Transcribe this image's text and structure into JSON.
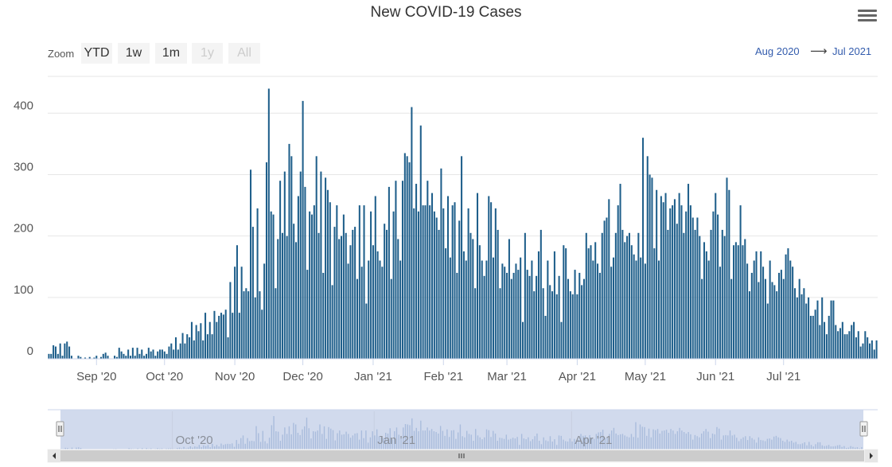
{
  "chart_data": {
    "type": "bar",
    "title": "New COVID-19 Cases",
    "xlabel": "",
    "ylabel": "",
    "ylim": [
      0,
      460
    ],
    "yticks": [
      0,
      100,
      200,
      300,
      400
    ],
    "xticks": [
      "Sep '20",
      "Oct '20",
      "Nov '20",
      "Dec '20",
      "Jan '21",
      "Feb '21",
      "Mar '21",
      "Apr '21",
      "May '21",
      "Jun '21",
      "Jul '21"
    ],
    "xtick_dates": [
      "2020-09-01",
      "2020-10-01",
      "2020-11-01",
      "2020-12-01",
      "2021-01-01",
      "2021-02-01",
      "2021-03-01",
      "2021-04-01",
      "2021-05-01",
      "2021-06-01",
      "2021-07-01"
    ],
    "start_date": "2020-08-11",
    "grid": true,
    "bar_color": "#1f5f8b",
    "navigator_labels": [
      "Oct '20",
      "Jan '21",
      "Apr '21"
    ],
    "navigator_label_dates": [
      "2020-10-01",
      "2021-01-01",
      "2021-04-01"
    ],
    "series": [
      {
        "values": [
          8,
          8,
          22,
          20,
          8,
          25,
          5,
          25,
          28,
          20,
          5,
          0,
          0,
          5,
          3,
          0,
          2,
          0,
          3,
          0,
          2,
          5,
          0,
          3,
          8,
          10,
          5,
          0,
          0,
          5,
          3,
          18,
          12,
          8,
          5,
          15,
          5,
          18,
          5,
          18,
          8,
          15,
          5,
          8,
          18,
          12,
          15,
          5,
          12,
          15,
          15,
          12,
          8,
          20,
          25,
          15,
          35,
          15,
          25,
          42,
          25,
          40,
          35,
          60,
          30,
          55,
          45,
          58,
          30,
          75,
          40,
          60,
          40,
          78,
          60,
          70,
          75,
          72,
          80,
          35,
          125,
          75,
          150,
          185,
          75,
          150,
          110,
          115,
          110,
          308,
          215,
          100,
          245,
          110,
          80,
          155,
          320,
          440,
          240,
          235,
          115,
          195,
          290,
          205,
          305,
          200,
          350,
          330,
          220,
          190,
          265,
          305,
          420,
          280,
          145,
          240,
          235,
          250,
          330,
          205,
          305,
          140,
          295,
          275,
          255,
          120,
          215,
          250,
          195,
          200,
          235,
          205,
          155,
          185,
          210,
          215,
          130,
          250,
          150,
          250,
          90,
          160,
          240,
          185,
          265,
          175,
          160,
          150,
          220,
          210,
          280,
          130,
          240,
          290,
          195,
          160,
          290,
          335,
          330,
          320,
          410,
          245,
          285,
          240,
          380,
          250,
          250,
          290,
          250,
          270,
          240,
          230,
          210,
          310,
          245,
          180,
          265,
          165,
          250,
          255,
          140,
          225,
          330,
          175,
          160,
          245,
          205,
          195,
          115,
          270,
          185,
          160,
          135,
          160,
          265,
          255,
          165,
          245,
          210,
          115,
          155,
          150,
          140,
          195,
          130,
          140,
          155,
          145,
          165,
          60,
          205,
          145,
          135,
          160,
          110,
          135,
          175,
          210,
          115,
          70,
          160,
          120,
          110,
          175,
          105,
          135,
          60,
          185,
          180,
          130,
          110,
          105,
          145,
          105,
          140,
          120,
          130,
          205,
          180,
          185,
          160,
          190,
          155,
          140,
          205,
          225,
          230,
          260,
          150,
          165,
          205,
          250,
          285,
          210,
          190,
          200,
          205,
          185,
          170,
          160,
          205,
          165,
          360,
          155,
          330,
          300,
          295,
          180,
          275,
          160,
          265,
          255,
          270,
          210,
          245,
          250,
          260,
          220,
          270,
          250,
          205,
          240,
          285,
          250,
          230,
          210,
          230,
          200,
          130,
          190,
          175,
          160,
          210,
          240,
          270,
          235,
          150,
          210,
          200,
          295,
          275,
          130,
          185,
          190,
          185,
          250,
          185,
          195,
          155,
          110,
          140,
          160,
          175,
          125,
          175,
          150,
          130,
          90,
          160,
          125,
          120,
          110,
          140,
          145,
          130,
          170,
          180,
          160,
          150,
          115,
          100,
          130,
          105,
          115,
          90,
          100,
          70,
          70,
          80,
          95,
          55,
          100,
          60,
          40,
          70,
          95,
          95,
          55,
          45,
          50,
          60,
          40,
          40,
          45,
          55,
          60,
          35,
          45,
          20,
          25,
          45,
          35,
          25,
          30,
          15,
          30
        ],
        "spike_values": [
          440,
          420,
          410,
          330
        ]
      }
    ]
  },
  "toolbar": {
    "zoom_label": "Zoom",
    "buttons": [
      "YTD",
      "1w",
      "1m",
      "1y",
      "All"
    ],
    "range_from": "Aug 2020",
    "range_arrow": "⟶",
    "range_to": "Jul 2021"
  },
  "icons": {
    "menu": "hamburger-menu-icon",
    "scroll_left": "arrow-left-icon",
    "scroll_right": "arrow-right-icon",
    "handle": "navigator-handle-icon",
    "grip": "scrollbar-grip-icon"
  }
}
